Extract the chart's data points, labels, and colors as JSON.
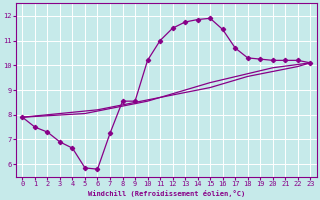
{
  "xlabel": "Windchill (Refroidissement éolien,°C)",
  "bg_color": "#c6eaea",
  "line_color": "#880088",
  "grid_color": "#ffffff",
  "xlim": [
    -0.5,
    23.5
  ],
  "ylim": [
    5.5,
    12.5
  ],
  "yticks": [
    6,
    7,
    8,
    9,
    10,
    11,
    12
  ],
  "xticks": [
    0,
    1,
    2,
    3,
    4,
    5,
    6,
    7,
    8,
    9,
    10,
    11,
    12,
    13,
    14,
    15,
    16,
    17,
    18,
    19,
    20,
    21,
    22,
    23
  ],
  "curve1_x": [
    0,
    1,
    2,
    3,
    4,
    5,
    6,
    7,
    8,
    9,
    10,
    11,
    12,
    13,
    14,
    15,
    16,
    17,
    18,
    19,
    20,
    21,
    22,
    23
  ],
  "curve1_y": [
    7.9,
    7.5,
    7.3,
    6.9,
    6.65,
    5.85,
    5.8,
    7.25,
    8.55,
    8.55,
    10.2,
    11.0,
    11.5,
    11.75,
    11.85,
    11.9,
    11.45,
    10.7,
    10.3,
    10.25,
    10.2,
    10.2,
    10.2,
    10.1
  ],
  "curve2_x": [
    0,
    1,
    2,
    3,
    4,
    5,
    6,
    7,
    8,
    9,
    10,
    11,
    12,
    13,
    14,
    15,
    16,
    17,
    18,
    19,
    20,
    21,
    22,
    23
  ],
  "curve2_y": [
    7.9,
    7.95,
    8.0,
    8.05,
    8.1,
    8.15,
    8.2,
    8.3,
    8.4,
    8.5,
    8.6,
    8.7,
    8.8,
    8.9,
    9.0,
    9.1,
    9.25,
    9.4,
    9.55,
    9.65,
    9.75,
    9.85,
    9.95,
    10.1
  ],
  "curve3_x": [
    0,
    5,
    10,
    15,
    20,
    23
  ],
  "curve3_y": [
    7.9,
    8.05,
    8.55,
    9.3,
    9.9,
    10.1
  ],
  "marker": "D",
  "markersize": 2.2,
  "linewidth": 0.9
}
